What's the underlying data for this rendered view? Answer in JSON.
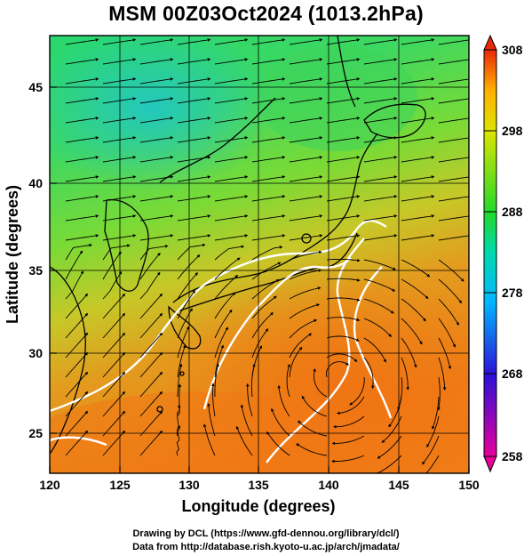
{
  "title": "MSM 00Z03Oct2024 (1013.2hPa)",
  "map": {
    "xlabel": "Longitude (degrees)",
    "ylabel": "Latitude  (degrees)",
    "lon_ticks": [
      "120",
      "125",
      "130",
      "135",
      "140",
      "145",
      "150"
    ],
    "lat_ticks": [
      "25",
      "30",
      "35",
      "40",
      "45"
    ],
    "lon_range": [
      120,
      150
    ],
    "lat_range": [
      22.4,
      47.6
    ],
    "field": "temperature",
    "vectors": "wind streamlines",
    "contour_color": "#ffffff",
    "coastline_color": "#000000"
  },
  "colorbar": {
    "labels": [
      "308",
      "298",
      "288",
      "278",
      "268",
      "258"
    ],
    "range": [
      258,
      308
    ],
    "colors": [
      "#e8009a",
      "#0016ff",
      "#00c8ff",
      "#22d92a",
      "#dde400",
      "#ff8800",
      "#e8290a"
    ]
  },
  "credits": {
    "line1": "Drawing by DCL (https://www.gfd-dennou.org/library/dcl/)",
    "line2": "Data from http://database.rish.kyoto-u.ac.jp/arch/jmadata/"
  }
}
